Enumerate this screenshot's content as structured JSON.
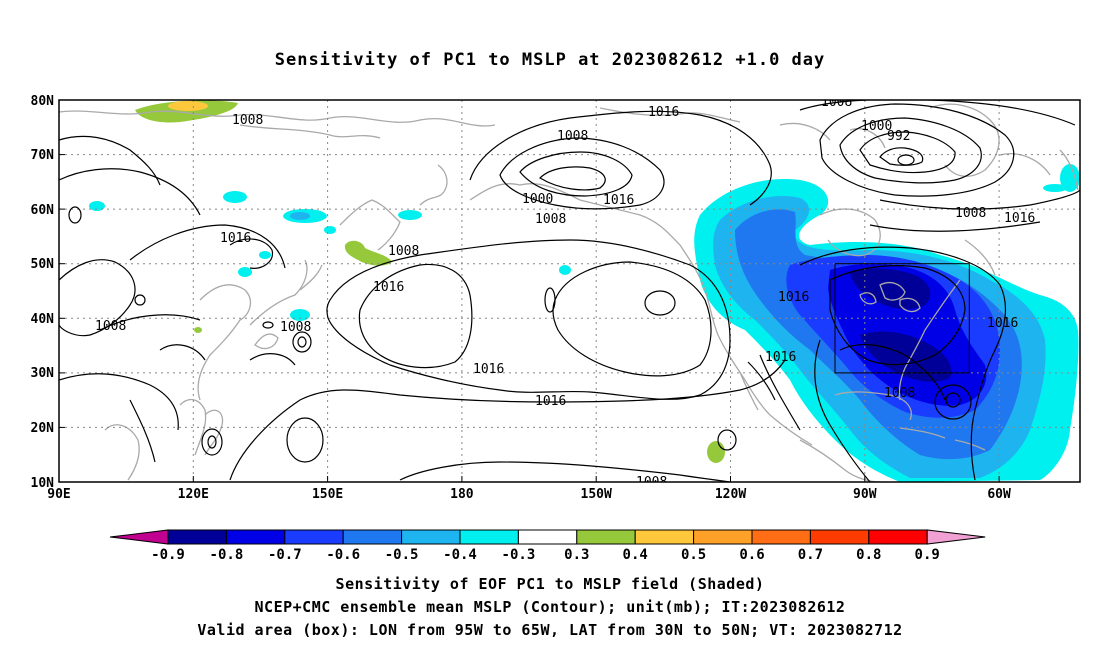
{
  "title": "Sensitivity of PC1 to MSLP at 2023082612 +1.0 day",
  "map": {
    "lat_labels": [
      "80N",
      "70N",
      "60N",
      "50N",
      "40N",
      "30N",
      "20N",
      "10N"
    ],
    "lon_labels": [
      "90E",
      "120E",
      "150E",
      "180",
      "150W",
      "120W",
      "90W",
      "60W"
    ],
    "grid_lines": true,
    "contour_labels": [
      "1008",
      "1016",
      "1008",
      "1000",
      "992",
      "1008",
      "1016",
      "1016",
      "1008",
      "1000",
      "1008",
      "1016",
      "1016",
      "1016",
      "1008",
      "1016",
      "1016",
      "1016",
      "1008",
      "1008",
      "1008"
    ],
    "valid_box": {
      "lon_from": "95W",
      "lon_to": "65W",
      "lat_from": "30N",
      "lat_to": "50N"
    },
    "colors": {
      "coast": "#a9a9a9",
      "contour": "#000000",
      "grid": "#888888"
    }
  },
  "colorbar": {
    "labels": [
      "-0.9",
      "-0.8",
      "-0.7",
      "-0.6",
      "-0.5",
      "-0.4",
      "-0.3",
      "0.3",
      "0.4",
      "0.5",
      "0.6",
      "0.7",
      "0.8",
      "0.9"
    ],
    "colors": [
      "#c0008f",
      "#000099",
      "#0000e6",
      "#1a3cff",
      "#1f78f0",
      "#1eb4f0",
      "#00f0f0",
      "#ffffff",
      "#96c83c",
      "#ffc83c",
      "#ffa028",
      "#ff6e14",
      "#ff3c00",
      "#ff0000",
      "#f0a0d2"
    ]
  },
  "caption": {
    "line1": "Sensitivity of EOF PC1 to MSLP field (Shaded)",
    "line2": "NCEP+CMC ensemble mean MSLP (Contour); unit(mb); IT:2023082612",
    "line3": "Valid area (box): LON from 95W to 65W, LAT from 30N to 50N; VT: 2023082712"
  }
}
